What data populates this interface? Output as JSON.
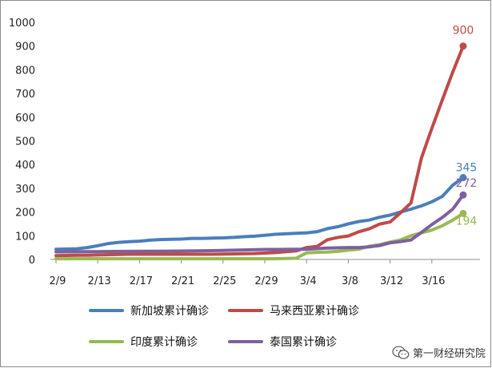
{
  "chart_data": {
    "type": "line",
    "x_ticks": [
      "2/9",
      "2/13",
      "2/17",
      "2/21",
      "2/25",
      "2/29",
      "3/4",
      "3/8",
      "3/12",
      "3/16"
    ],
    "x_start": "2/9",
    "x_end": "3/19",
    "ylim": [
      0,
      1000
    ],
    "y_ticks": [
      0,
      100,
      200,
      300,
      400,
      500,
      600,
      700,
      800,
      900,
      1000
    ],
    "legend_position": "bottom",
    "grid": false,
    "series": [
      {
        "name": "新加坡累计确诊",
        "color": "#4a7ebb",
        "end_label": "345",
        "points": [
          [
            "2/9",
            43
          ],
          [
            "2/11",
            45
          ],
          [
            "2/12",
            50
          ],
          [
            "2/13",
            58
          ],
          [
            "2/14",
            67
          ],
          [
            "2/15",
            72
          ],
          [
            "2/16",
            75
          ],
          [
            "2/17",
            77
          ],
          [
            "2/18",
            81
          ],
          [
            "2/19",
            84
          ],
          [
            "2/20",
            85
          ],
          [
            "2/21",
            86
          ],
          [
            "2/22",
            89
          ],
          [
            "2/23",
            89
          ],
          [
            "2/24",
            90
          ],
          [
            "2/25",
            91
          ],
          [
            "2/26",
            93
          ],
          [
            "2/27",
            96
          ],
          [
            "2/28",
            98
          ],
          [
            "2/29",
            102
          ],
          [
            "3/1",
            106
          ],
          [
            "3/2",
            108
          ],
          [
            "3/3",
            110
          ],
          [
            "3/4",
            112
          ],
          [
            "3/5",
            117
          ],
          [
            "3/6",
            130
          ],
          [
            "3/7",
            138
          ],
          [
            "3/8",
            150
          ],
          [
            "3/9",
            160
          ],
          [
            "3/10",
            166
          ],
          [
            "3/11",
            178
          ],
          [
            "3/12",
            187
          ],
          [
            "3/13",
            200
          ],
          [
            "3/14",
            212
          ],
          [
            "3/15",
            226
          ],
          [
            "3/16",
            243
          ],
          [
            "3/17",
            266
          ],
          [
            "3/18",
            313
          ],
          [
            "3/19",
            345
          ]
        ]
      },
      {
        "name": "马来西亚累计确诊",
        "color": "#be4b48",
        "end_label": "900",
        "points": [
          [
            "2/9",
            16
          ],
          [
            "2/11",
            18
          ],
          [
            "2/12",
            18
          ],
          [
            "2/13",
            19
          ],
          [
            "2/16",
            22
          ],
          [
            "2/20",
            22
          ],
          [
            "2/24",
            22
          ],
          [
            "2/28",
            25
          ],
          [
            "3/1",
            29
          ],
          [
            "3/3",
            36
          ],
          [
            "3/4",
            50
          ],
          [
            "3/5",
            55
          ],
          [
            "3/6",
            83
          ],
          [
            "3/7",
            93
          ],
          [
            "3/8",
            99
          ],
          [
            "3/9",
            117
          ],
          [
            "3/10",
            129
          ],
          [
            "3/11",
            149
          ],
          [
            "3/12",
            158
          ],
          [
            "3/13",
            197
          ],
          [
            "3/14",
            238
          ],
          [
            "3/15",
            428
          ],
          [
            "3/16",
            553
          ],
          [
            "3/17",
            673
          ],
          [
            "3/18",
            790
          ],
          [
            "3/19",
            900
          ]
        ]
      },
      {
        "name": "印度累计确诊",
        "color": "#98b954",
        "end_label": "194",
        "points": [
          [
            "2/9",
            3
          ],
          [
            "2/15",
            3
          ],
          [
            "2/20",
            3
          ],
          [
            "2/25",
            3
          ],
          [
            "3/1",
            3
          ],
          [
            "3/3",
            5
          ],
          [
            "3/4",
            28
          ],
          [
            "3/5",
            30
          ],
          [
            "3/6",
            31
          ],
          [
            "3/7",
            34
          ],
          [
            "3/8",
            39
          ],
          [
            "3/9",
            43
          ],
          [
            "3/10",
            56
          ],
          [
            "3/11",
            62
          ],
          [
            "3/12",
            73
          ],
          [
            "3/13",
            82
          ],
          [
            "3/14",
            100
          ],
          [
            "3/15",
            112
          ],
          [
            "3/16",
            124
          ],
          [
            "3/17",
            142
          ],
          [
            "3/18",
            166
          ],
          [
            "3/19",
            194
          ]
        ]
      },
      {
        "name": "泰国累计确诊",
        "color": "#7d60a0",
        "end_label": "272",
        "points": [
          [
            "2/9",
            32
          ],
          [
            "2/12",
            33
          ],
          [
            "2/13",
            33
          ],
          [
            "2/16",
            34
          ],
          [
            "2/20",
            35
          ],
          [
            "2/24",
            37
          ],
          [
            "2/27",
            40
          ],
          [
            "2/29",
            42
          ],
          [
            "3/1",
            42
          ],
          [
            "3/3",
            43
          ],
          [
            "3/4",
            43
          ],
          [
            "3/6",
            48
          ],
          [
            "3/8",
            50
          ],
          [
            "3/9",
            50
          ],
          [
            "3/10",
            53
          ],
          [
            "3/11",
            59
          ],
          [
            "3/12",
            70
          ],
          [
            "3/13",
            75
          ],
          [
            "3/14",
            82
          ],
          [
            "3/15",
            114
          ],
          [
            "3/16",
            147
          ],
          [
            "3/17",
            177
          ],
          [
            "3/18",
            212
          ],
          [
            "3/19",
            272
          ]
        ]
      }
    ]
  },
  "watermark": {
    "text": "第一财经研究院",
    "icon": "wechat-icon"
  }
}
